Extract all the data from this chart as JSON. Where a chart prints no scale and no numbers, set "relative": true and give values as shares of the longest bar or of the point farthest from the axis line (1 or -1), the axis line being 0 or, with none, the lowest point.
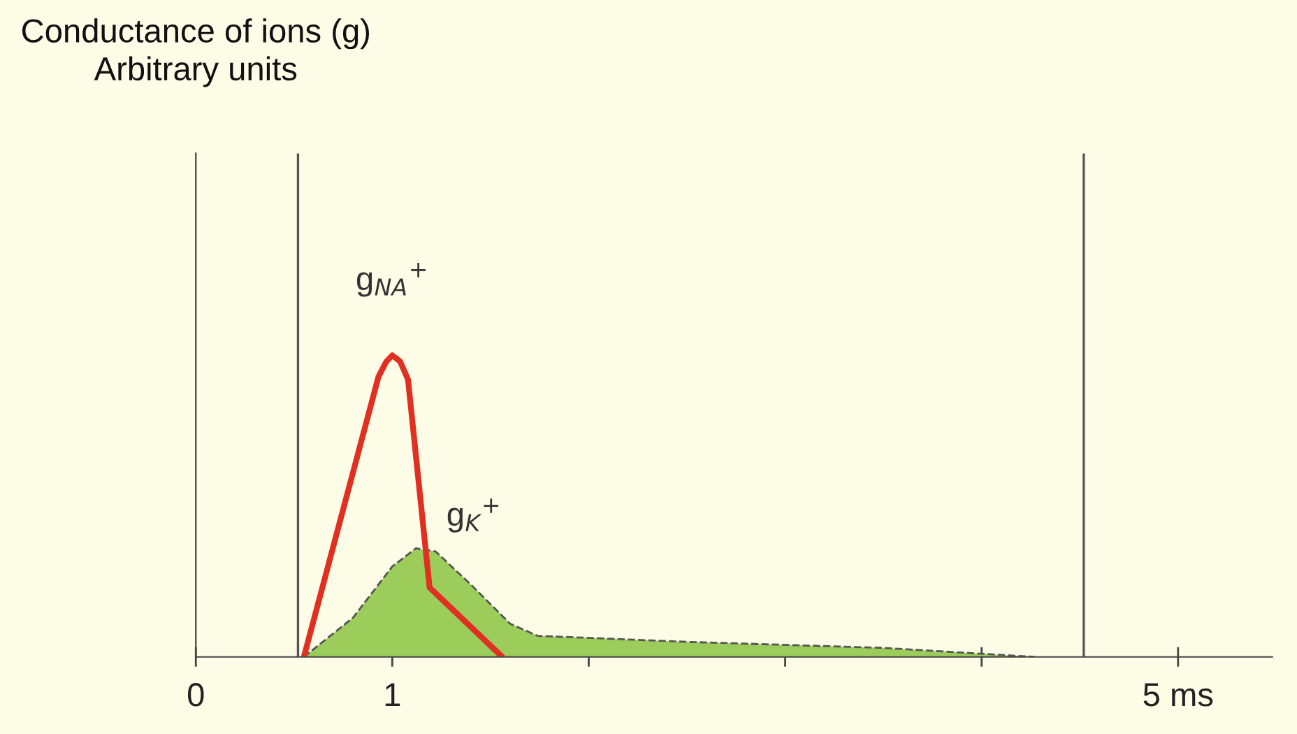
{
  "chart_data": {
    "type": "line",
    "relative": true,
    "annotations": [
      "Conductance of ions (g)\nArbitrary units"
    ],
    "xlim": [
      0,
      5.48
    ],
    "xticks": [
      {
        "value": 0,
        "label": "0"
      },
      1,
      {
        "value": 2,
        "label": null
      },
      {
        "value": 3,
        "label": null
      },
      {
        "value": 4,
        "label": null
      },
      {
        "value": 5,
        "label": "5 ms"
      }
    ],
    "series": [
      {
        "name": "g$_{NA}$$^{+}$",
        "color": "#e03022",
        "line_style": "solid",
        "x": [
          0.55,
          0.93,
          0.97,
          1.0,
          1.04,
          1.08,
          1.19,
          1.56
        ],
        "values": [
          0,
          0.93,
          0.98,
          1.0,
          0.98,
          0.92,
          0.23,
          0
        ]
      },
      {
        "name": "g$_{K}$$^{+}$",
        "type": "area",
        "color": "#9ccc5a",
        "line_style": "dashed",
        "x": [
          0.55,
          0.8,
          1.0,
          1.12,
          1.22,
          1.4,
          1.6,
          1.74,
          2.5,
          3.5,
          4.27
        ],
        "values": [
          0,
          0.13,
          0.3,
          0.36,
          0.35,
          0.24,
          0.11,
          0.07,
          0.05,
          0.03,
          0
        ]
      }
    ],
    "ref_lines": [
      {
        "axis": "x",
        "value": 0.52,
        "color": "#555555"
      },
      {
        "axis": "x",
        "value": 4.52,
        "color": "#555555"
      }
    ],
    "grid": false,
    "legend": false
  }
}
